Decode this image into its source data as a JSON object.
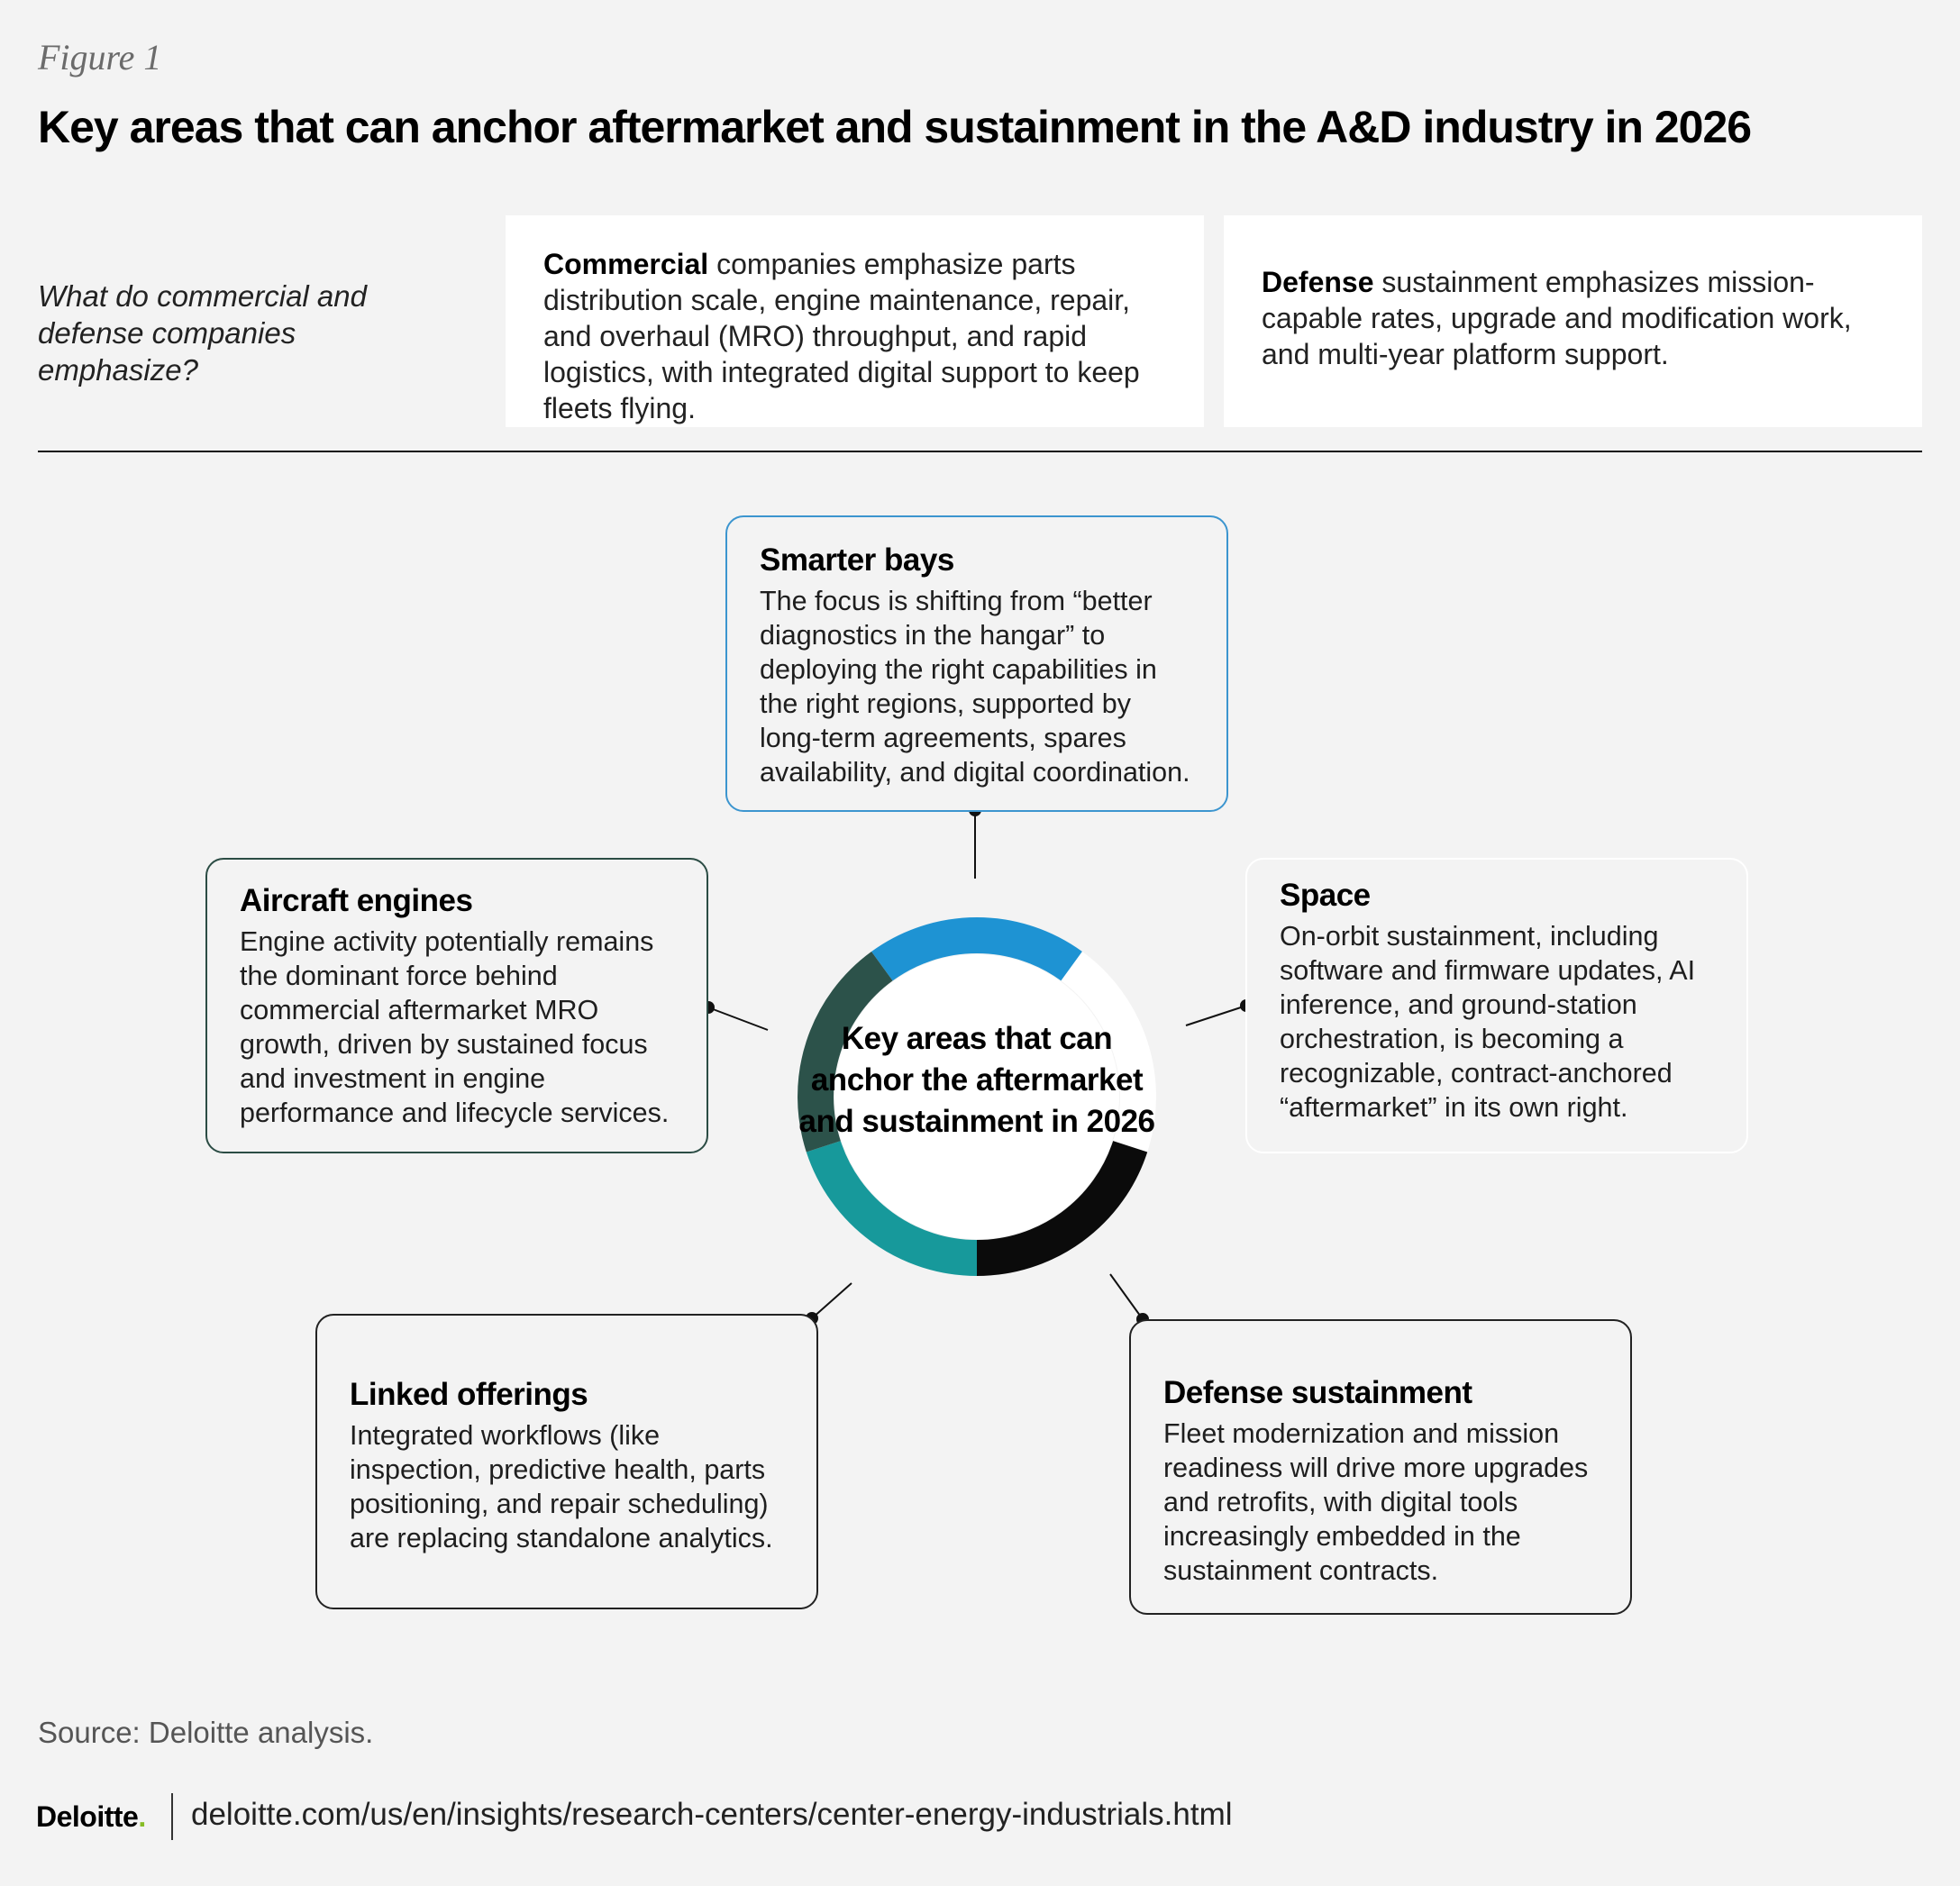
{
  "figure_label": "Figure 1",
  "title": "Key areas that can anchor aftermarket and sustainment in the A&D industry in 2026",
  "question": "What do commercial and defense companies emphasize?",
  "commercial": {
    "lead": "Commercial",
    "text": " companies emphasize parts distribution scale, engine maintenance, repair, and overhaul (MRO) throughput, and rapid logistics, with integrated digital support to keep fleets flying."
  },
  "defense": {
    "lead": "Defense",
    "text": " sustainment emphasizes mission-capable rates, upgrade and modification work, and multi-year platform support."
  },
  "center_label": "Key areas that can anchor the aftermarket and sustainment in 2026",
  "areas": {
    "smarter_bays": {
      "title": "Smarter bays",
      "text": "The focus is shifting from “better diagnostics in the hangar” to deploying the right capabilities in the right regions, supported by long-term agreements, spares availability, and digital coordination.",
      "color": "#1e93d3"
    },
    "space": {
      "title": "Space",
      "text": "On-orbit sustainment, including software and firmware updates, AI inference, and ground-station orchestration, is becoming a recognizable, contract-anchored “aftermarket” in its own right.",
      "color": "#ffffff"
    },
    "defense_sustainment": {
      "title": "Defense sustainment",
      "text": "Fleet modernization and mission readiness will drive more upgrades and retrofits, with digital tools increasingly embedded in the sustainment contracts.",
      "color": "#0b0b0b"
    },
    "linked_offerings": {
      "title": "Linked offerings",
      "text": "Integrated workflows (like inspection, predictive health, parts positioning, and repair scheduling) are replacing standalone analytics.",
      "color": "#17999b"
    },
    "aircraft_engines": {
      "title": "Aircraft engines",
      "text": "Engine activity potentially remains the dominant force behind commercial aftermarket MRO growth, driven by sustained focus and investment in engine performance and lifecycle services.",
      "color": "#2c524a"
    }
  },
  "source": "Source: Deloitte analysis.",
  "footer": {
    "logo": "Deloitte",
    "logo_dot": ".",
    "url": "deloitte.com/us/en/insights/research-centers/center-energy-industrials.html"
  }
}
